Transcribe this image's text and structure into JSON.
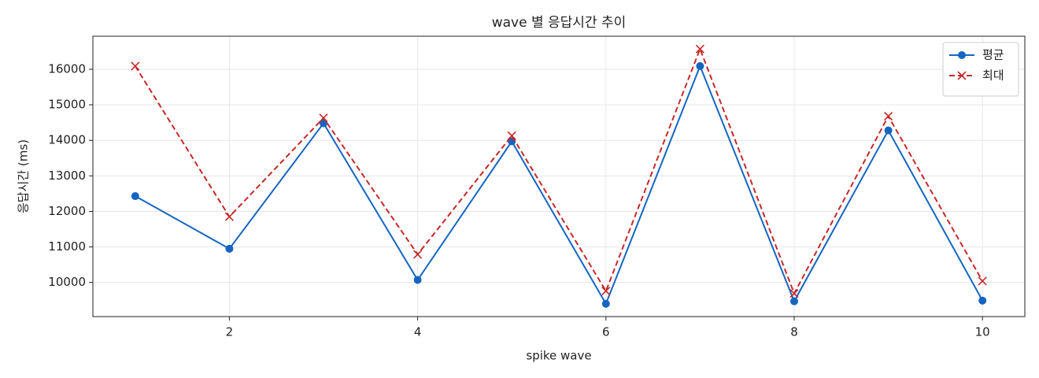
{
  "chart_data": {
    "type": "line",
    "title": "wave 별 응답시간 추이",
    "xlabel": "spike wave",
    "ylabel": "응답시간 (ms)",
    "x": [
      1,
      2,
      3,
      4,
      5,
      6,
      7,
      8,
      9,
      10
    ],
    "series": [
      {
        "name": "평균",
        "color": "#1565c0",
        "marker": "o",
        "linestyle": "solid",
        "values": [
          12430,
          10950,
          14480,
          10070,
          13970,
          9400,
          16090,
          9470,
          14280,
          9490
        ]
      },
      {
        "name": "최대",
        "color": "#c62828",
        "marker": "x",
        "linestyle": "dashed",
        "values": [
          16090,
          11850,
          14630,
          10790,
          14130,
          9760,
          16570,
          9690,
          14680,
          10040
        ]
      }
    ],
    "xlim": [
      0.55,
      10.45
    ],
    "xticks": [
      2,
      4,
      6,
      8,
      10
    ],
    "ylim": [
      9040,
      16930
    ],
    "yticks": [
      10000,
      11000,
      12000,
      13000,
      14000,
      15000,
      16000
    ],
    "grid": true,
    "legend": "upper right"
  }
}
